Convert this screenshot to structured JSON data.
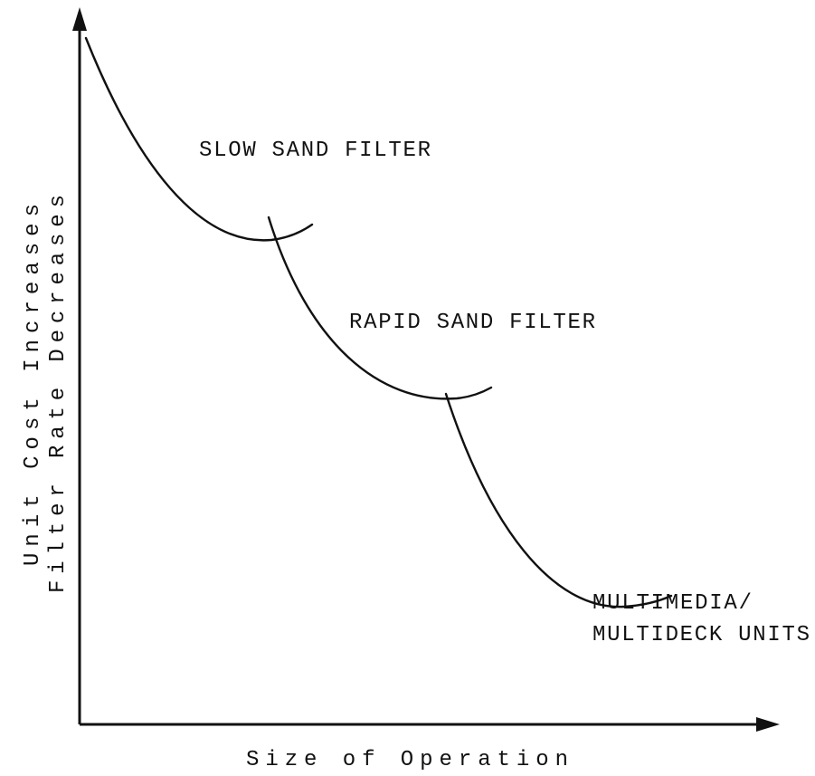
{
  "axes": {
    "y_label": [
      "Unit Cost Increases",
      "Filter Rate Decreases"
    ],
    "x_label": "Size of Operation"
  },
  "curves": [
    {
      "label": [
        "SLOW SAND FILTER"
      ]
    },
    {
      "label": [
        "RAPID SAND FILTER"
      ]
    },
    {
      "label": [
        "MULTIMEDIA/",
        "MULTIDECK UNITS"
      ]
    }
  ]
}
